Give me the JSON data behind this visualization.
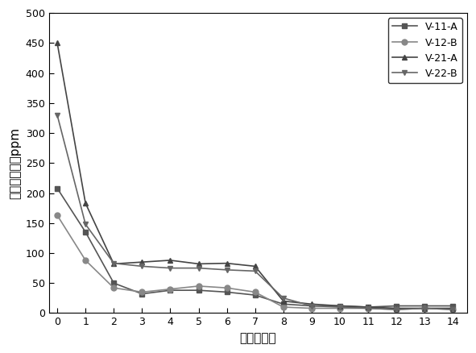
{
  "title": "",
  "xlabel": "时间（天）",
  "ylabel": "硫化氢含量／ppm",
  "xlim": [
    -0.3,
    14.5
  ],
  "ylim": [
    0,
    500
  ],
  "yticks": [
    0,
    50,
    100,
    150,
    200,
    250,
    300,
    350,
    400,
    450,
    500
  ],
  "xticks": [
    0,
    1,
    2,
    3,
    4,
    5,
    6,
    7,
    8,
    9,
    10,
    11,
    12,
    13,
    14
  ],
  "series": [
    {
      "label": "V-11-A",
      "x": [
        0,
        1,
        2,
        3,
        4,
        5,
        6,
        7,
        8,
        9,
        10,
        11,
        12,
        13,
        14
      ],
      "y": [
        208,
        135,
        50,
        32,
        38,
        38,
        35,
        30,
        15,
        12,
        12,
        10,
        12,
        12,
        12
      ],
      "color": "#555555",
      "marker": "s",
      "linestyle": "-"
    },
    {
      "label": "V-12-B",
      "x": [
        0,
        1,
        2,
        3,
        4,
        5,
        6,
        7,
        8,
        9,
        10,
        11,
        12,
        13,
        14
      ],
      "y": [
        163,
        88,
        42,
        35,
        40,
        45,
        42,
        35,
        10,
        8,
        8,
        8,
        6,
        8,
        6
      ],
      "color": "#888888",
      "marker": "o",
      "linestyle": "-"
    },
    {
      "label": "V-21-A",
      "x": [
        0,
        1,
        2,
        3,
        4,
        5,
        6,
        7,
        8,
        9,
        10,
        11,
        12,
        13,
        14
      ],
      "y": [
        450,
        183,
        82,
        85,
        88,
        82,
        83,
        78,
        20,
        15,
        12,
        10,
        8,
        8,
        8
      ],
      "color": "#444444",
      "marker": "^",
      "linestyle": "-"
    },
    {
      "label": "V-22-B",
      "x": [
        0,
        1,
        2,
        3,
        4,
        5,
        6,
        7,
        8,
        9,
        10,
        11,
        12,
        13,
        14
      ],
      "y": [
        330,
        148,
        83,
        78,
        75,
        75,
        72,
        70,
        25,
        12,
        10,
        8,
        6,
        8,
        6
      ],
      "color": "#666666",
      "marker": "v",
      "linestyle": "-"
    }
  ],
  "legend_loc": "upper right",
  "background_color": "#ffffff",
  "grid": false
}
